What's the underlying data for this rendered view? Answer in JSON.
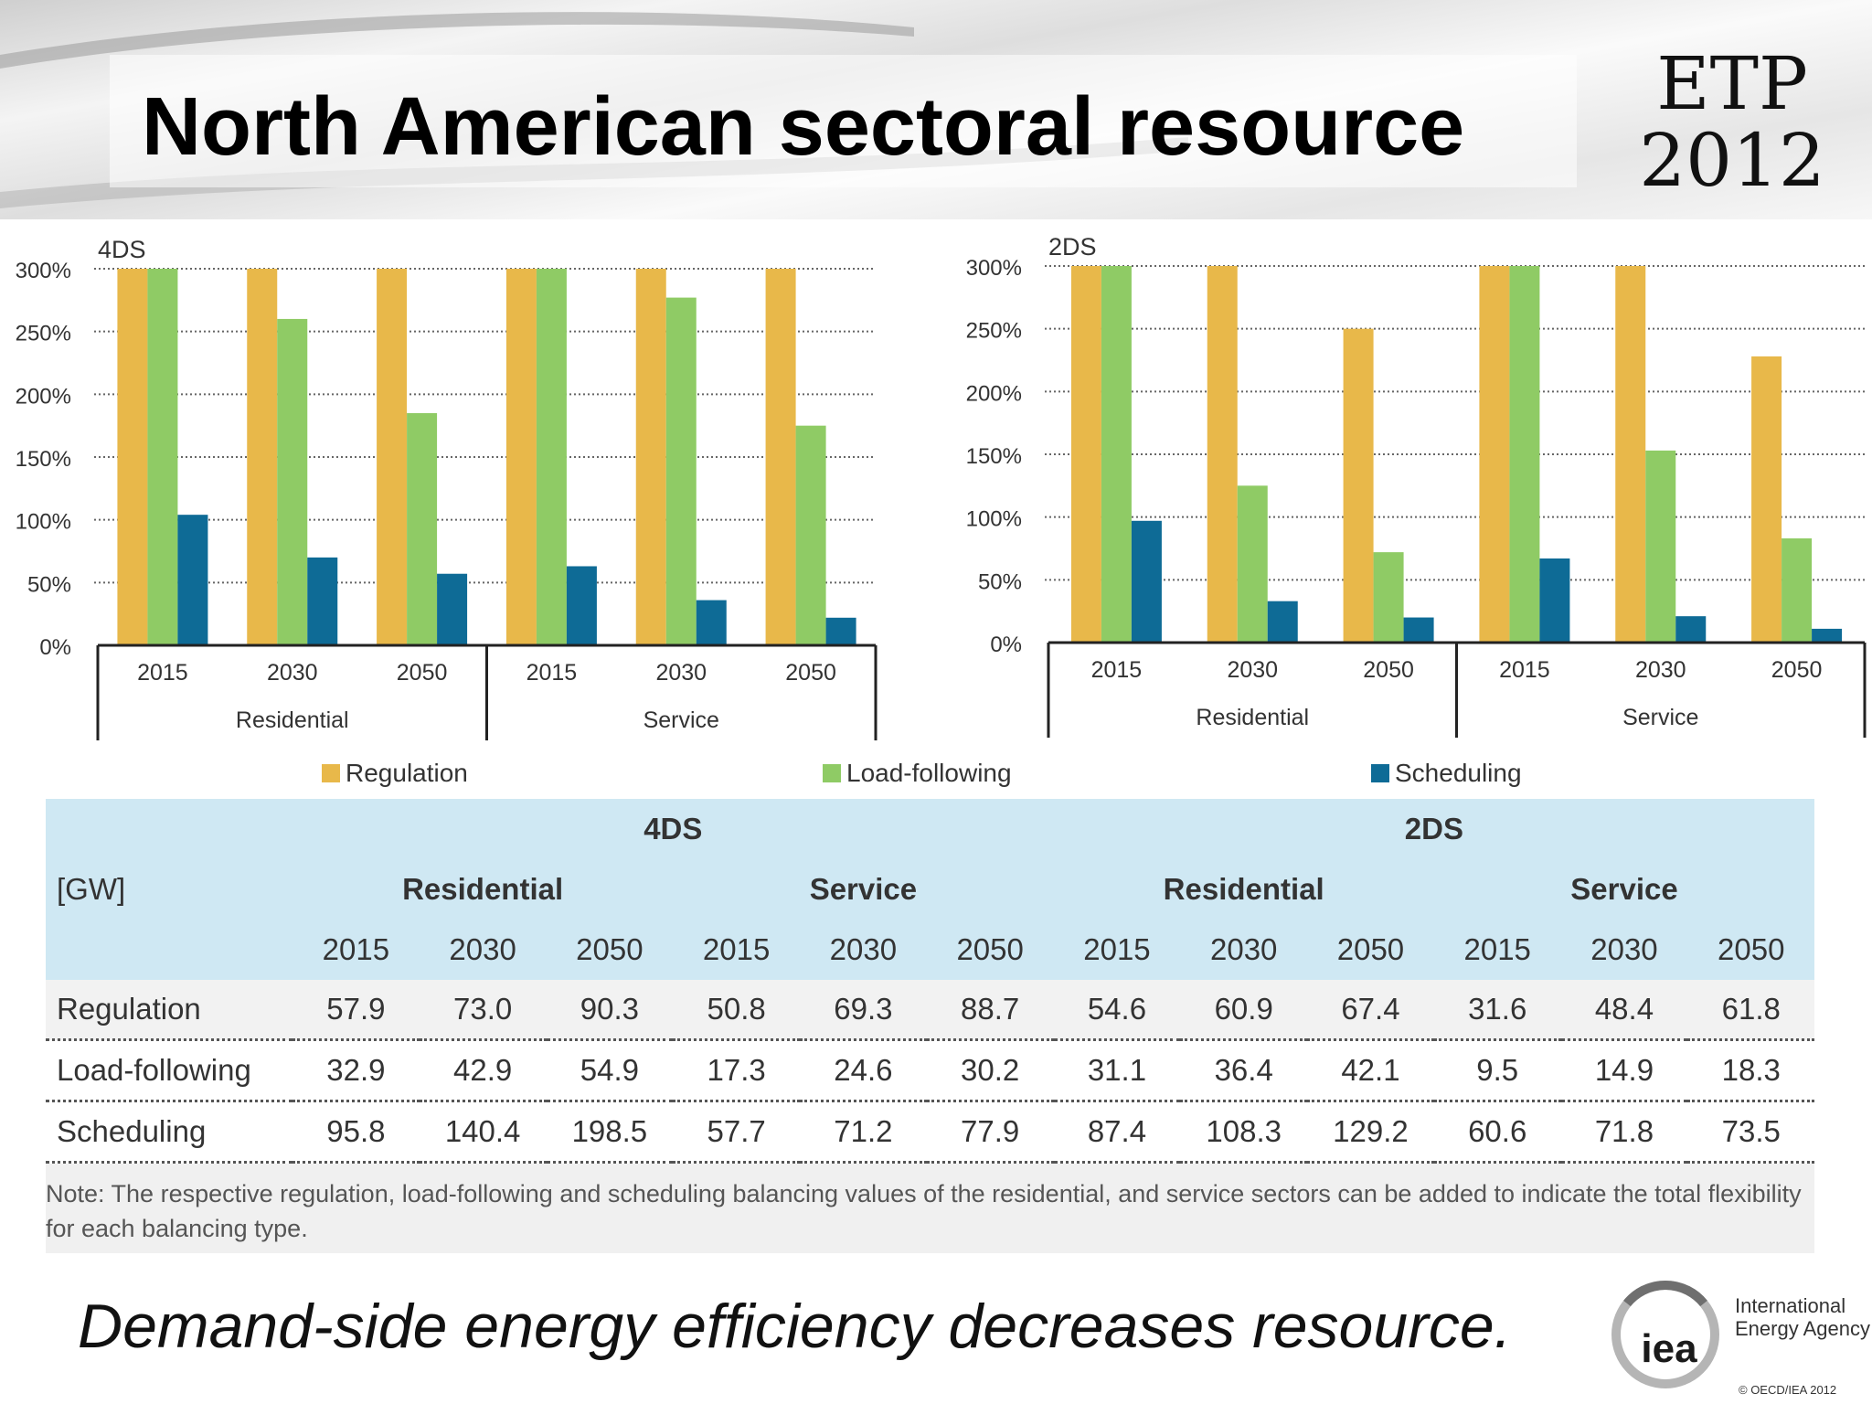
{
  "slide": {
    "title": "North American sectoral resource",
    "logo_line1": "ETP",
    "logo_line2": "2012",
    "tagline": "Demand-side energy efficiency decreases resource.",
    "iea_name_line1": "International",
    "iea_name_line2": "Energy Agency",
    "iea_mark": "iea",
    "copyright": "© OECD/IEA 2012"
  },
  "colors": {
    "regulation": "#e8b84a",
    "load_following": "#8fcb65",
    "scheduling": "#0e6b96",
    "table_header": "#cfe8f3"
  },
  "legend": [
    "Regulation",
    "Load-following",
    "Scheduling"
  ],
  "chart_data": [
    {
      "type": "bar",
      "title": "4DS",
      "groups": [
        "Residential",
        "Service"
      ],
      "categories": [
        "2015",
        "2030",
        "2050",
        "2015",
        "2030",
        "2050"
      ],
      "series": [
        {
          "name": "Regulation",
          "values": [
            300,
            300,
            300,
            300,
            300,
            300
          ]
        },
        {
          "name": "Load-following",
          "values": [
            300,
            260,
            185,
            300,
            277,
            175
          ]
        },
        {
          "name": "Scheduling",
          "values": [
            104,
            70,
            57,
            63,
            36,
            22
          ]
        }
      ],
      "yticks": [
        "0%",
        "50%",
        "100%",
        "150%",
        "200%",
        "250%",
        "300%"
      ],
      "ylim": [
        0,
        300
      ],
      "grid": true,
      "legend_position": "bottom"
    },
    {
      "type": "bar",
      "title": "2DS",
      "groups": [
        "Residential",
        "Service"
      ],
      "categories": [
        "2015",
        "2030",
        "2050",
        "2015",
        "2030",
        "2050"
      ],
      "series": [
        {
          "name": "Regulation",
          "values": [
            300,
            300,
            250,
            300,
            300,
            228
          ]
        },
        {
          "name": "Load-following",
          "values": [
            300,
            125,
            72,
            300,
            153,
            83
          ]
        },
        {
          "name": "Scheduling",
          "values": [
            97,
            33,
            20,
            67,
            21,
            11
          ]
        }
      ],
      "yticks": [
        "0%",
        "50%",
        "100%",
        "150%",
        "200%",
        "250%",
        "300%"
      ],
      "ylim": [
        0,
        300
      ],
      "grid": true,
      "legend_position": "bottom"
    }
  ],
  "table": {
    "unit": "[GW]",
    "scenarios": [
      "4DS",
      "2DS"
    ],
    "sectors": [
      "Residential",
      "Service",
      "Residential",
      "Service"
    ],
    "years": [
      "2015",
      "2030",
      "2050",
      "2015",
      "2030",
      "2050",
      "2015",
      "2030",
      "2050",
      "2015",
      "2030",
      "2050"
    ],
    "rows": [
      {
        "label": "Regulation",
        "values": [
          "57.9",
          "73.0",
          "90.3",
          "50.8",
          "69.3",
          "88.7",
          "54.6",
          "60.9",
          "67.4",
          "31.6",
          "48.4",
          "61.8"
        ]
      },
      {
        "label": "Load-following",
        "values": [
          "32.9",
          "42.9",
          "54.9",
          "17.3",
          "24.6",
          "30.2",
          "31.1",
          "36.4",
          "42.1",
          "9.5",
          "14.9",
          "18.3"
        ]
      },
      {
        "label": "Scheduling",
        "values": [
          "95.8",
          "140.4",
          "198.5",
          "57.7",
          "71.2",
          "77.9",
          "87.4",
          "108.3",
          "129.2",
          "60.6",
          "71.8",
          "73.5"
        ]
      }
    ],
    "note": "Note: The respective regulation, load-following and scheduling balancing values of the residential, and service sectors can be added to indicate the total flexibility for each balancing type."
  }
}
